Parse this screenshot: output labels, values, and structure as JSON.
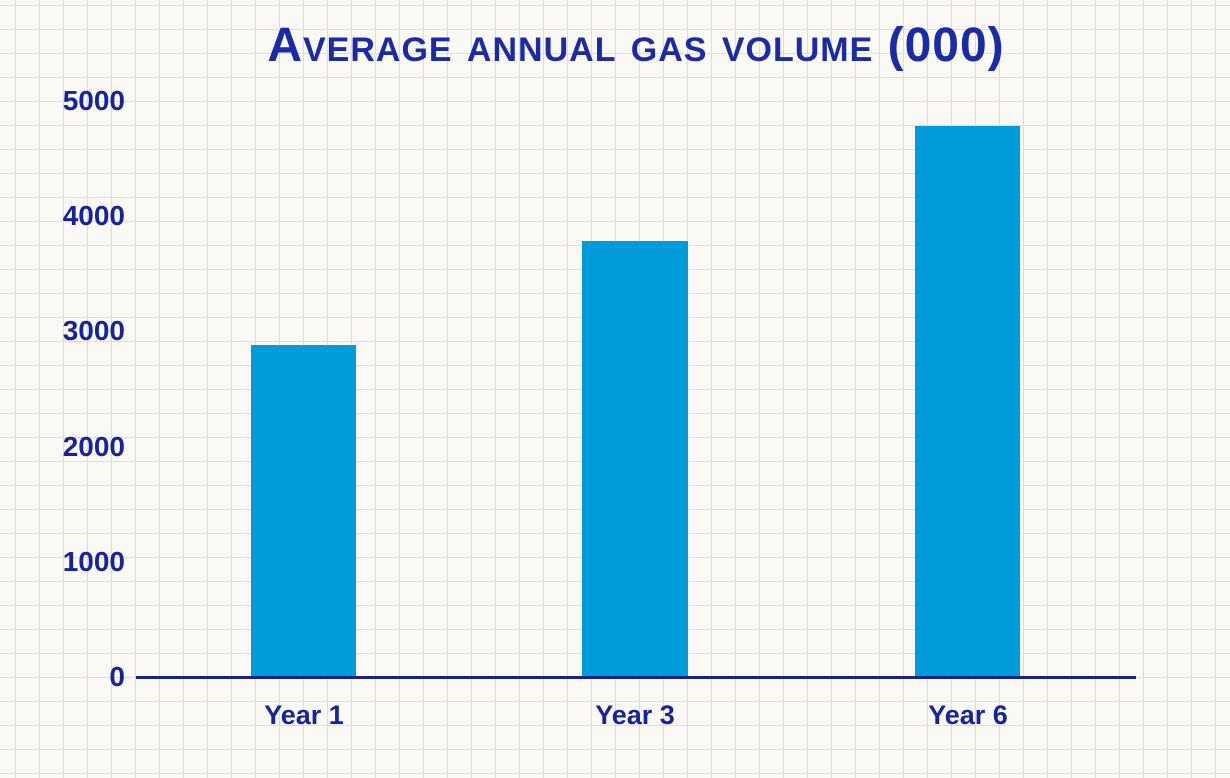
{
  "page": {
    "background_color": "#faf9f5",
    "grid_line_color": "#dadcec",
    "style": "graph-paper"
  },
  "chart_data": {
    "type": "bar",
    "title": "Average annual gas volume (000)",
    "categories": [
      "Year 1",
      "Year 3",
      "Year 6"
    ],
    "values": [
      2900,
      3800,
      4800
    ],
    "yticks": [
      "0",
      "1000",
      "2000",
      "3000",
      "4000",
      "5000"
    ],
    "ylim": [
      0,
      5000
    ],
    "xlabel": "",
    "ylabel": "",
    "legend": "none",
    "gridlines": "background graph paper only",
    "bar_color": "#009bdb",
    "axis_color": "#18228f",
    "text_color": "#1b2aa6"
  }
}
